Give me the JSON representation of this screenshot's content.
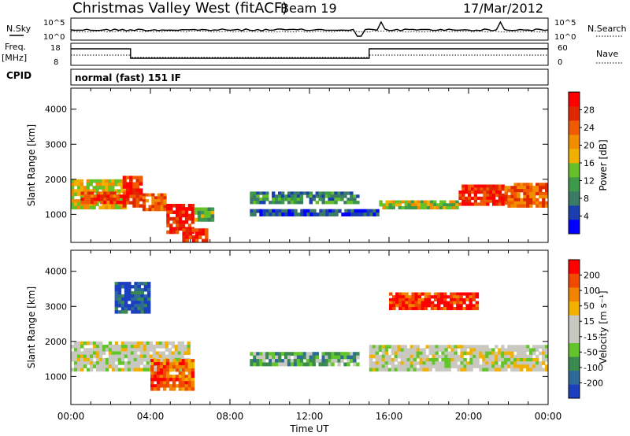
{
  "header": {
    "station": "Christmas Valley West (fitACF)",
    "beam": "Beam 19",
    "date": "17/Mar/2012"
  },
  "noise_panel": {
    "left_label": "N.Sky",
    "right_label": "N.Search",
    "left_ticks": [
      "10^5",
      "10^0"
    ],
    "right_ticks": [
      "10^5",
      "10^0"
    ]
  },
  "freq_panel": {
    "left_label_1": "Freq.",
    "left_label_2": "[MHz]",
    "right_label": "Nave",
    "left_ticks": [
      "18",
      "8"
    ],
    "right_ticks": [
      "60",
      "0"
    ]
  },
  "cpid": {
    "label": "CPID",
    "value": "normal (fast) 151 IF"
  },
  "colors": {
    "power_scale": [
      "#0000ff",
      "#1b3fb0",
      "#3a7a66",
      "#3c9a4a",
      "#66c028",
      "#f0b000",
      "#f28c00",
      "#f05a00",
      "#e02800",
      "#ff0000"
    ],
    "velocity_scale": [
      "#1b3fbf",
      "#2d6a9a",
      "#3a8a50",
      "#62c52a",
      "#c8c8c0",
      "#c8c8c0",
      "#f2b000",
      "#f28400",
      "#f04a00",
      "#ff0000"
    ]
  },
  "chart_data": [
    {
      "type": "heatmap",
      "name": "power",
      "ylabel": "Slant Range [km]",
      "y_ticks": [
        1000,
        2000,
        3000,
        4000
      ],
      "ylim": [
        200,
        4600
      ],
      "xlim": [
        0,
        24
      ],
      "colorbar": {
        "label": "Power [dB]",
        "ticks": [
          "4",
          "8",
          "12",
          "16",
          "20",
          "24",
          "28"
        ],
        "range": [
          0,
          32
        ]
      },
      "features": [
        {
          "t0": 0.0,
          "t1": 2.8,
          "r0": 1150,
          "r1": 2000,
          "level": 0.55
        },
        {
          "t0": 0.5,
          "t1": 2.6,
          "r0": 1300,
          "r1": 1650,
          "level": 0.8
        },
        {
          "t0": 2.6,
          "t1": 3.6,
          "r0": 1200,
          "r1": 2100,
          "level": 0.85
        },
        {
          "t0": 3.6,
          "t1": 4.8,
          "r0": 1100,
          "r1": 1600,
          "level": 0.75
        },
        {
          "t0": 4.8,
          "t1": 6.2,
          "r0": 450,
          "r1": 1300,
          "level": 0.9
        },
        {
          "t0": 5.6,
          "t1": 6.9,
          "r0": 200,
          "r1": 600,
          "level": 0.85
        },
        {
          "t0": 6.2,
          "t1": 7.2,
          "r0": 800,
          "r1": 1200,
          "level": 0.4
        },
        {
          "t0": 9.0,
          "t1": 14.5,
          "r0": 1300,
          "r1": 1650,
          "level": 0.3
        },
        {
          "t0": 9.0,
          "t1": 15.5,
          "r0": 950,
          "r1": 1150,
          "level": 0.15
        },
        {
          "t0": 15.5,
          "t1": 19.5,
          "r0": 1150,
          "r1": 1400,
          "level": 0.5
        },
        {
          "t0": 19.5,
          "t1": 21.8,
          "r0": 1250,
          "r1": 1850,
          "level": 0.85
        },
        {
          "t0": 21.8,
          "t1": 24.0,
          "r0": 1200,
          "r1": 1900,
          "level": 0.75
        }
      ]
    },
    {
      "type": "heatmap",
      "name": "velocity",
      "ylabel": "Slant Range [km]",
      "xlabel": "Time UT",
      "x_ticks": [
        "00:00",
        "04:00",
        "08:00",
        "12:00",
        "16:00",
        "20:00",
        "00:00"
      ],
      "x_tick_hours": [
        0,
        4,
        8,
        12,
        16,
        20,
        24
      ],
      "y_ticks": [
        1000,
        2000,
        3000,
        4000
      ],
      "ylim": [
        200,
        4600
      ],
      "xlim": [
        0,
        24
      ],
      "colorbar": {
        "label": "Velocity [m s⁻¹]",
        "ticks": [
          "-200",
          "-100",
          "-50",
          "-15",
          "15",
          "50",
          "100",
          "200"
        ],
        "range": [
          -250,
          250
        ]
      },
      "features": [
        {
          "t0": 0.0,
          "t1": 6.0,
          "r0": 1150,
          "r1": 2000,
          "level": 0.5
        },
        {
          "t0": 4.0,
          "t1": 6.2,
          "r0": 600,
          "r1": 1500,
          "level": 0.8
        },
        {
          "t0": 2.2,
          "t1": 4.0,
          "r0": 2800,
          "r1": 3700,
          "level": 0.1
        },
        {
          "t0": 9.0,
          "t1": 14.5,
          "r0": 1300,
          "r1": 1700,
          "level": 0.3
        },
        {
          "t0": 15.0,
          "t1": 24.0,
          "r0": 1150,
          "r1": 1900,
          "level": 0.5
        },
        {
          "t0": 16.0,
          "t1": 20.5,
          "r0": 2900,
          "r1": 3400,
          "level": 0.9
        }
      ]
    }
  ]
}
